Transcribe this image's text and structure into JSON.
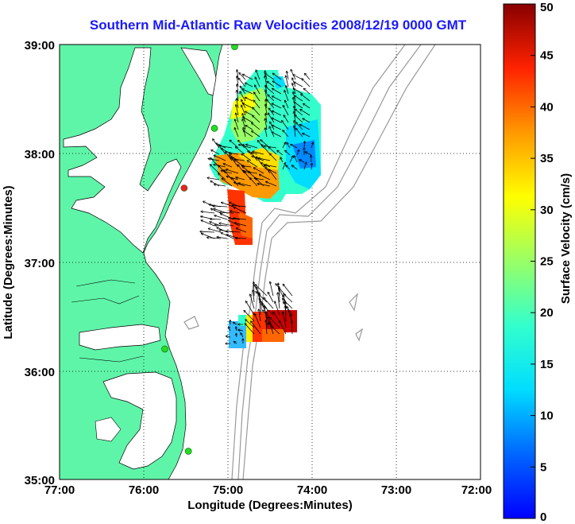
{
  "title": "Southern Mid-Atlantic Raw Velocities 2008/12/19 0000 GMT",
  "axes": {
    "xlabel": "Longitude (Degrees:Minutes)",
    "ylabel": "Latitude (Degrees:Minutes)",
    "x_ticks": [
      "77:00",
      "76:00",
      "75:00",
      "74:00",
      "73:00",
      "72:00"
    ],
    "y_ticks": [
      "39:00",
      "38:00",
      "37:00",
      "36:00",
      "35:00"
    ]
  },
  "colorbar": {
    "label": "Surface Velocity (cm/s)",
    "ticks": [
      "50",
      "45",
      "40",
      "35",
      "30",
      "25",
      "20",
      "15",
      "10",
      "5",
      "0"
    ]
  },
  "colors": {
    "land": "#5ff5a8",
    "water": "#ffffff",
    "title": "#1a1aff",
    "station_green": "#22dd22",
    "station_red": "#ee2222",
    "bathymetry": "#999999"
  },
  "chart_data": {
    "type": "heatmap",
    "title": "Southern Mid-Atlantic Raw Velocities 2008/12/19 0000 GMT",
    "xlabel": "Longitude (Degrees:Minutes)",
    "ylabel": "Latitude (Degrees:Minutes)",
    "xlim": [
      -77,
      -72
    ],
    "ylim": [
      35,
      39
    ],
    "colorbar_range": [
      0,
      50
    ],
    "colorbar_units": "cm/s",
    "stations": [
      {
        "lon": -74.92,
        "lat": 38.98,
        "color": "green"
      },
      {
        "lon": -75.16,
        "lat": 38.23,
        "color": "green"
      },
      {
        "lon": -75.52,
        "lat": 37.68,
        "color": "red"
      },
      {
        "lon": -75.75,
        "lat": 36.2,
        "color": "green"
      },
      {
        "lon": -75.47,
        "lat": 35.26,
        "color": "green"
      }
    ]
  }
}
